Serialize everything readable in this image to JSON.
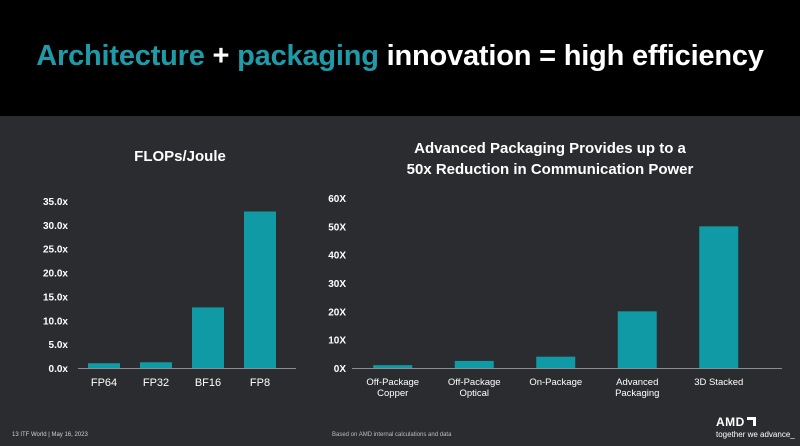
{
  "slide": {
    "title_part1": "Architecture",
    "title_plus": " + ",
    "title_part2": "packaging",
    "title_rest": " innovation = high efficiency",
    "accent_color": "#1f9aa8",
    "bar_color": "#0f9aa6"
  },
  "footer": {
    "left": "13      ITF World  |  May 16, 2023",
    "middle": "Based on AMD internal calculations and data"
  },
  "logo": {
    "name": "AMD",
    "tagline": "together we advance_"
  },
  "chart_data": [
    {
      "type": "bar",
      "title": "FLOPs/Joule",
      "categories": [
        "FP64",
        "FP32",
        "BF16",
        "FP8"
      ],
      "values": [
        1.0,
        1.2,
        12.7,
        32.8
      ],
      "ylim": [
        0,
        35
      ],
      "yticks": [
        0,
        5,
        10,
        15,
        20,
        25,
        30,
        35
      ],
      "ytick_labels": [
        "0.0x",
        "5.0x",
        "10.0x",
        "15.0x",
        "20.0x",
        "25.0x",
        "30.0x",
        "35.0x"
      ],
      "xlabel": "",
      "ylabel": ""
    },
    {
      "type": "bar",
      "title_line1": "Advanced Packaging Provides up to a",
      "title_line2": "50x Reduction in Communication Power",
      "categories": [
        [
          "Off-Package",
          "Copper"
        ],
        [
          "Off-Package",
          "Optical"
        ],
        [
          "On-Package"
        ],
        [
          "Advanced",
          "Packaging"
        ],
        [
          "3D Stacked"
        ]
      ],
      "values": [
        1,
        2.5,
        4,
        20,
        50
      ],
      "ylim": [
        0,
        60
      ],
      "yticks": [
        0,
        10,
        20,
        30,
        40,
        50,
        60
      ],
      "ytick_labels": [
        "0X",
        "10X",
        "20X",
        "30X",
        "40X",
        "50X",
        "60X"
      ],
      "xlabel": "",
      "ylabel": ""
    }
  ]
}
